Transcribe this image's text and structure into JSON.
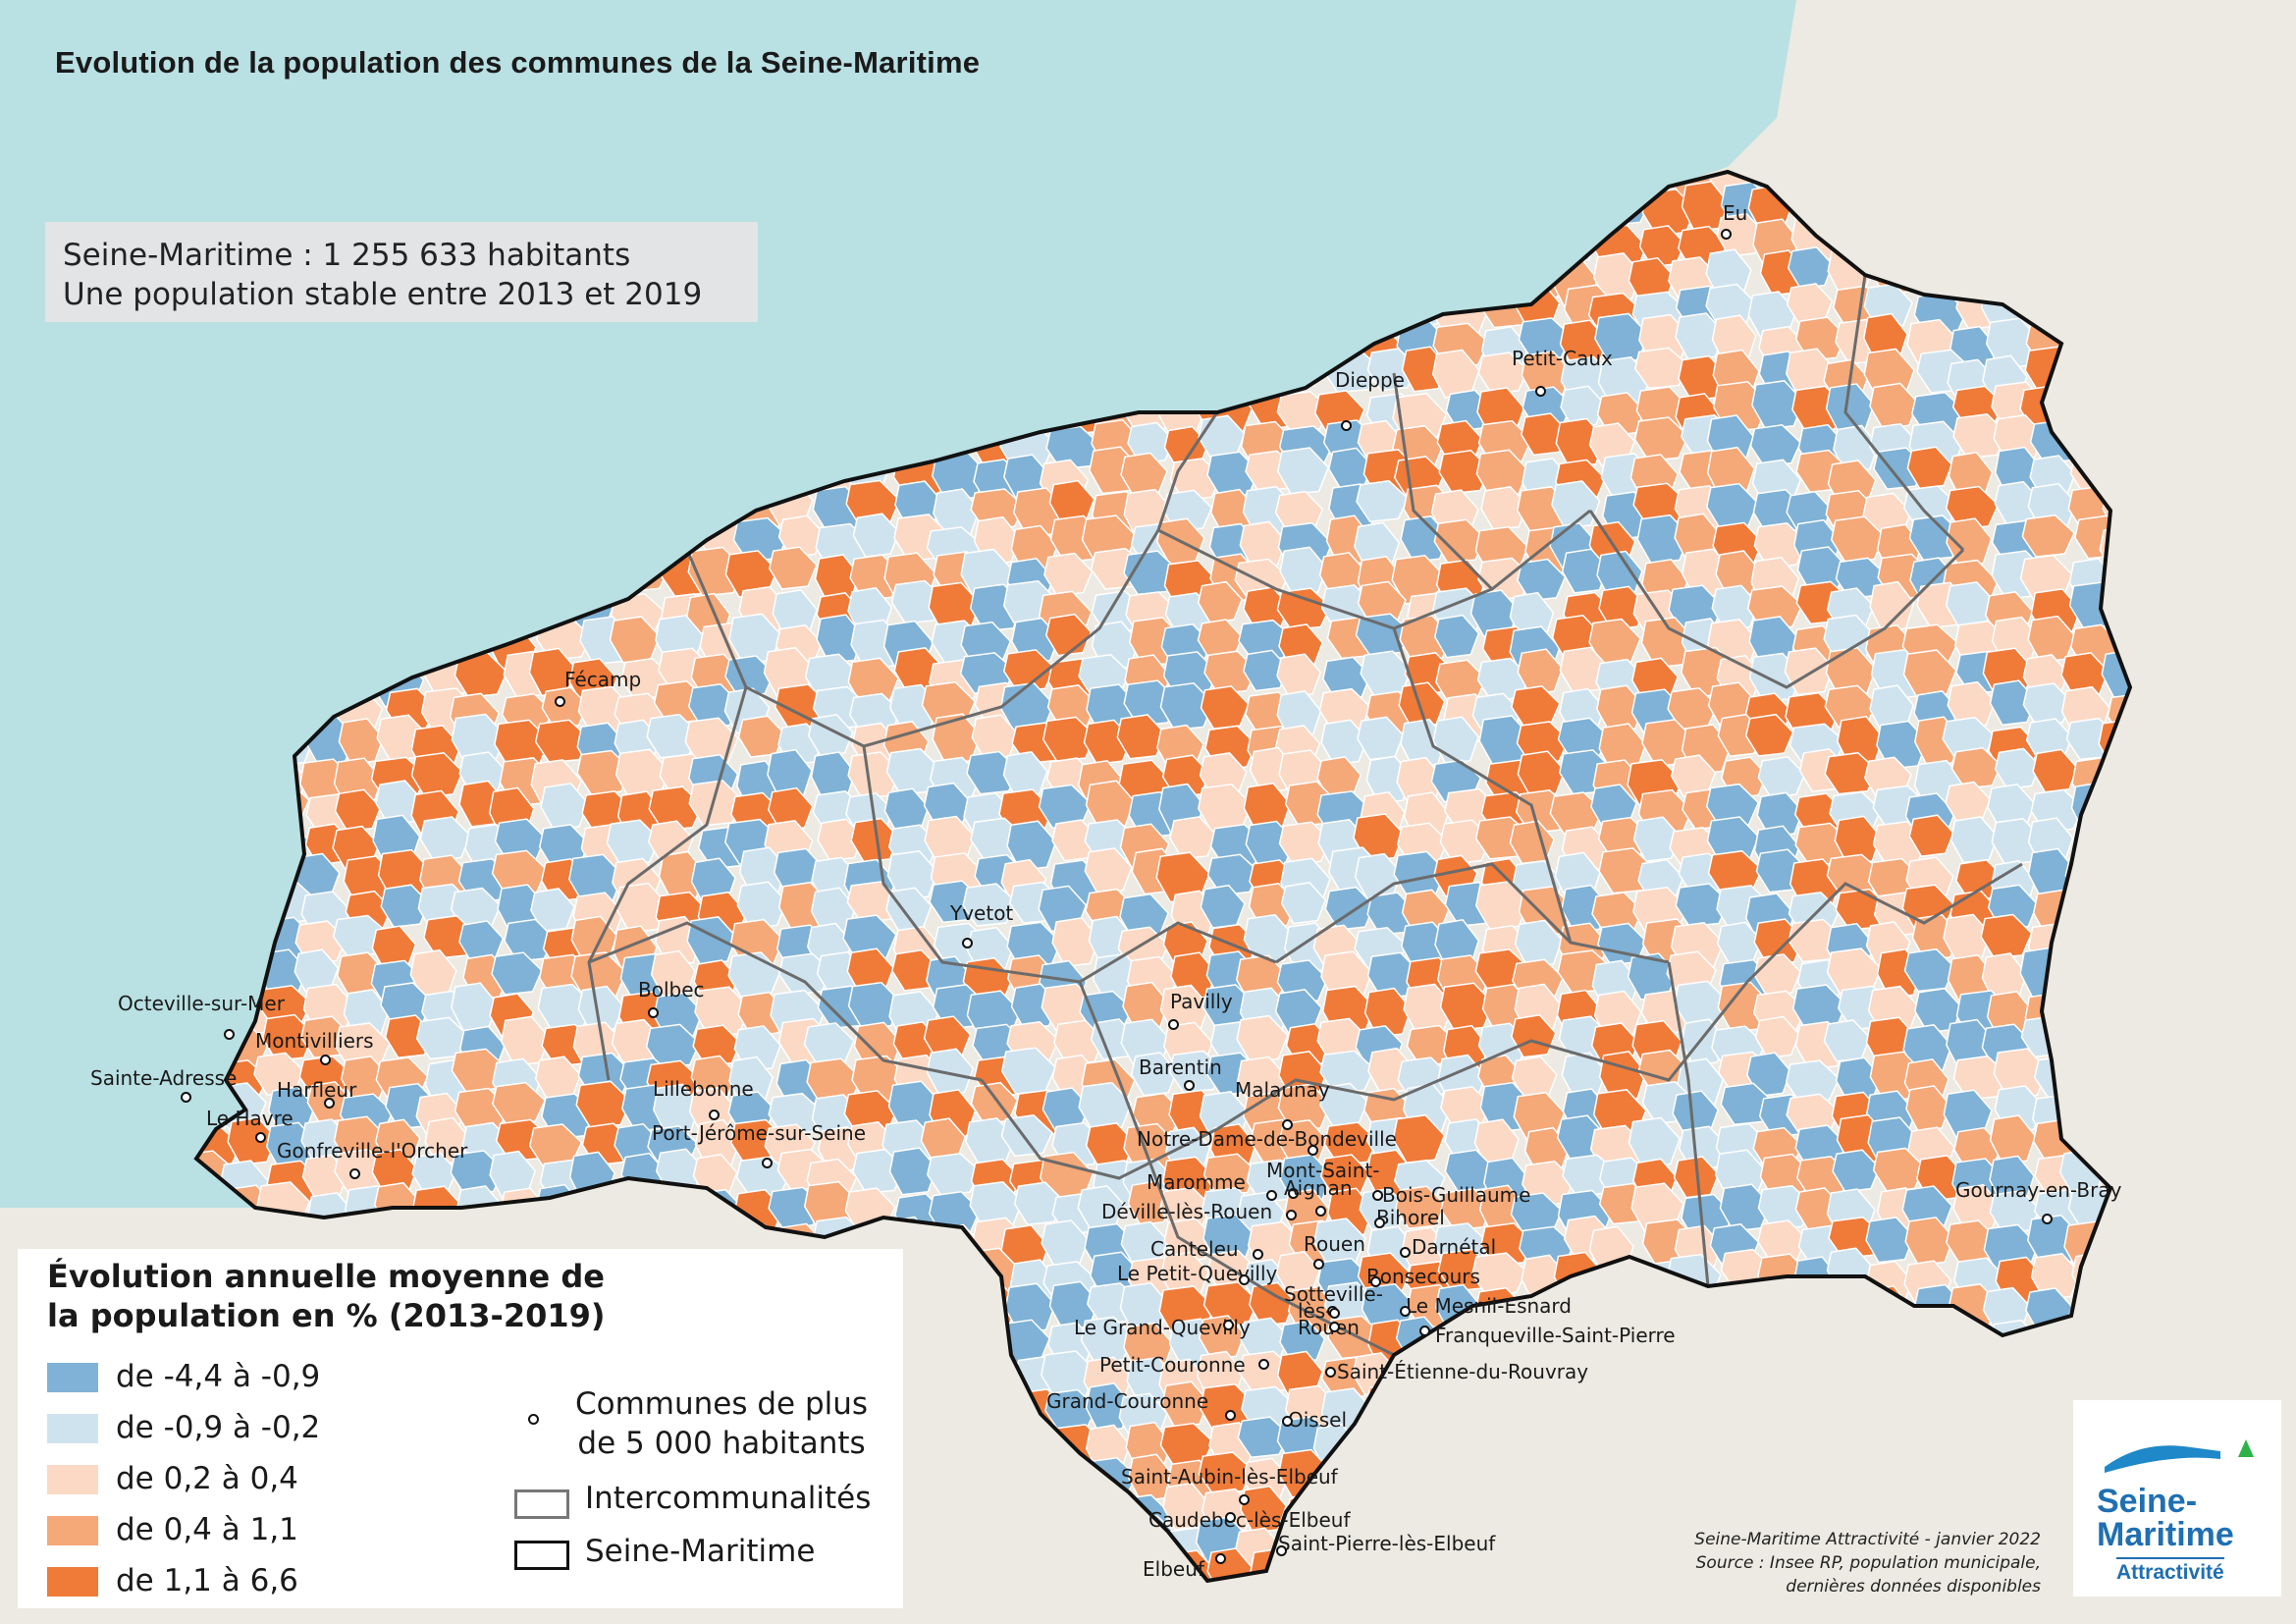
{
  "title": "Evolution de la population des communes de la Seine-Maritime",
  "info": {
    "line1": "Seine-Maritime : 1 255 633 habitants",
    "line2": "Une population stable entre 2013 et 2019"
  },
  "legend": {
    "title_line1": "Évolution annuelle moyenne de",
    "title_line2": "la population en % (2013-2019)",
    "classes": [
      {
        "label": "de -4,4 à -0,9",
        "color": "#7fb2d6"
      },
      {
        "label": "de -0,9 à -0,2",
        "color": "#cfe3ef"
      },
      {
        "label": "de 0,2 à 0,4",
        "color": "#fbd9c5"
      },
      {
        "label": "de 0,4 à 1,1",
        "color": "#f5a878"
      },
      {
        "label": "de 1,1 à 6,6",
        "color": "#f07a38"
      }
    ],
    "symbols": {
      "communes_line1": "Communes de plus",
      "communes_line2": "de 5 000 habitants",
      "intercos": "Intercommunalités",
      "department": "Seine-Maritime"
    }
  },
  "credit": {
    "line1": "Seine-Maritime Attractivité - janvier 2022",
    "line2": "Source : Insee RP, population municipale,",
    "line3": "dernières données disponibles"
  },
  "logo": {
    "line1": "Seine-",
    "line2": "Maritime",
    "line3": "Attractivité"
  },
  "colors": {
    "sea": "#b9e0e3",
    "land_outside": "#eceae2"
  },
  "cities": [
    "Eu",
    "Dieppe",
    "Petit-Caux",
    "Fécamp",
    "Yvetot",
    "Bolbec",
    "Pavilly",
    "Octeville-sur-Mer",
    "Montivilliers",
    "Sainte-Adresse",
    "Harfleur",
    "Le Havre",
    "Gonfreville-l'Orcher",
    "Lillebonne",
    "Port-Jérôme-sur-Seine",
    "Barentin",
    "Malaunay",
    "Notre-Dame-de-Bondeville",
    "Maromme",
    "Mont-Saint-",
    "Aignan",
    "Bois-Guillaume",
    "Déville-lès-Rouen",
    "Bihorel",
    "Canteleu",
    "Rouen",
    "Darnétal",
    "Le Petit-Quevilly",
    "Bonsecours",
    "Sotteville-",
    "lès-",
    "Le Mesnil-Esnard",
    "Le Grand-Quevilly",
    "Rouen",
    "Franqueville-Saint-Pierre",
    "Petit-Couronne",
    "Saint-Étienne-du-Rouvray",
    "Grand-Couronne",
    "Oissel",
    "Gournay-en-Bray",
    "Saint-Aubin-lès-Elbeuf",
    "Caudebec-lès-Elbeuf",
    "Saint-Pierre-lès-Elbeuf",
    "Elbeuf"
  ]
}
